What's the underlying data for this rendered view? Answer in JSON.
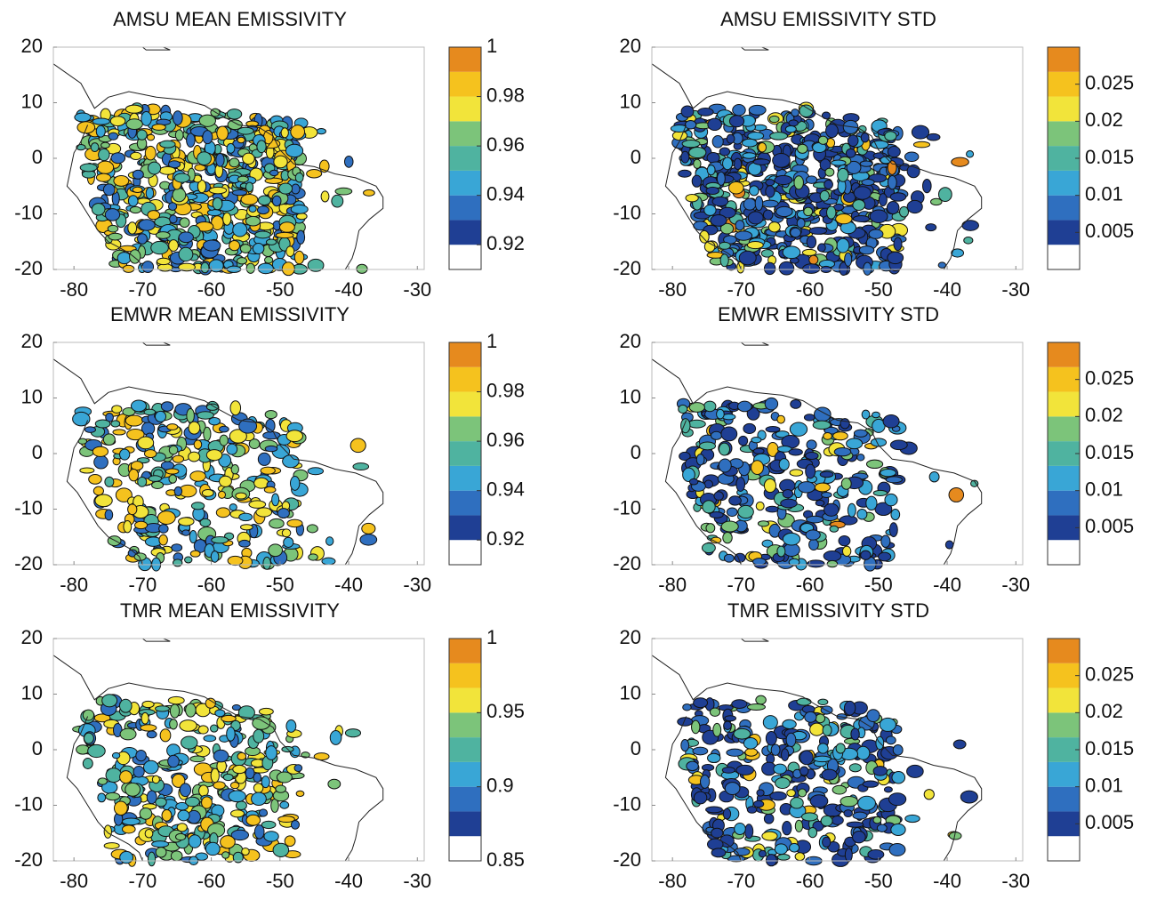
{
  "chart_data": [
    {
      "type": "contour-map",
      "title": "AMSU MEAN EMISSIVITY",
      "xlim": [
        -83,
        -29
      ],
      "ylim": [
        -20,
        20
      ],
      "xticks": [
        -80,
        -70,
        -60,
        -50,
        -40,
        -30
      ],
      "yticks": [
        -20,
        -10,
        0,
        10,
        20
      ],
      "colorbar": {
        "lim": [
          0.91,
          1
        ],
        "ticks": [
          0.92,
          0.94,
          0.96,
          0.98,
          1
        ],
        "colors": [
          "#ffffff",
          "#1f3f94",
          "#2f6fbf",
          "#39a6d6",
          "#4fb3a0",
          "#7cc47a",
          "#f2e43a",
          "#f5c21e",
          "#e68a1e"
        ]
      }
    },
    {
      "type": "contour-map",
      "title": "AMSU EMISSIVITY STD",
      "xlim": [
        -83,
        -29
      ],
      "ylim": [
        -20,
        20
      ],
      "xticks": [
        -80,
        -70,
        -60,
        -50,
        -40,
        -30
      ],
      "yticks": [
        -20,
        -10,
        0,
        10,
        20
      ],
      "colorbar": {
        "lim": [
          0,
          0.03
        ],
        "ticks": [
          0.005,
          0.01,
          0.015,
          0.02,
          0.025
        ],
        "colors": [
          "#ffffff",
          "#1f3f94",
          "#2f6fbf",
          "#39a6d6",
          "#4fb3a0",
          "#7cc47a",
          "#f2e43a",
          "#f5c21e",
          "#e68a1e"
        ]
      }
    },
    {
      "type": "contour-map",
      "title": "EMWR MEAN EMISSIVITY",
      "xlim": [
        -83,
        -29
      ],
      "ylim": [
        -20,
        20
      ],
      "xticks": [
        -80,
        -70,
        -60,
        -50,
        -40,
        -30
      ],
      "yticks": [
        -20,
        -10,
        0,
        10,
        20
      ],
      "colorbar": {
        "lim": [
          0.91,
          1
        ],
        "ticks": [
          0.92,
          0.94,
          0.96,
          0.98,
          1
        ],
        "colors": [
          "#ffffff",
          "#1f3f94",
          "#2f6fbf",
          "#39a6d6",
          "#4fb3a0",
          "#7cc47a",
          "#f2e43a",
          "#f5c21e",
          "#e68a1e"
        ]
      }
    },
    {
      "type": "contour-map",
      "title": "EMWR EMISSIVITY STD",
      "xlim": [
        -83,
        -29
      ],
      "ylim": [
        -20,
        20
      ],
      "xticks": [
        -80,
        -70,
        -60,
        -50,
        -40,
        -30
      ],
      "yticks": [
        -20,
        -10,
        0,
        10,
        20
      ],
      "colorbar": {
        "lim": [
          0,
          0.03
        ],
        "ticks": [
          0.005,
          0.01,
          0.015,
          0.02,
          0.025
        ],
        "colors": [
          "#ffffff",
          "#1f3f94",
          "#2f6fbf",
          "#39a6d6",
          "#4fb3a0",
          "#7cc47a",
          "#f2e43a",
          "#f5c21e",
          "#e68a1e"
        ]
      }
    },
    {
      "type": "contour-map",
      "title": "TMR MEAN EMISSIVITY",
      "xlim": [
        -83,
        -29
      ],
      "ylim": [
        -20,
        20
      ],
      "xticks": [
        -80,
        -70,
        -60,
        -50,
        -40,
        -30
      ],
      "yticks": [
        -20,
        -10,
        0,
        10,
        20
      ],
      "colorbar": {
        "lim": [
          0.85,
          1
        ],
        "ticks": [
          0.85,
          0.9,
          0.95,
          1
        ],
        "colors": [
          "#ffffff",
          "#1f3f94",
          "#2f6fbf",
          "#39a6d6",
          "#4fb3a0",
          "#7cc47a",
          "#f2e43a",
          "#f5c21e",
          "#e68a1e"
        ]
      }
    },
    {
      "type": "contour-map",
      "title": "TMR EMISSIVITY STD",
      "xlim": [
        -83,
        -29
      ],
      "ylim": [
        -20,
        20
      ],
      "xticks": [
        -80,
        -70,
        -60,
        -50,
        -40,
        -30
      ],
      "yticks": [
        -20,
        -10,
        0,
        10,
        20
      ],
      "colorbar": {
        "lim": [
          0,
          0.03
        ],
        "ticks": [
          0.005,
          0.01,
          0.015,
          0.02,
          0.025
        ],
        "colors": [
          "#ffffff",
          "#1f3f94",
          "#2f6fbf",
          "#39a6d6",
          "#4fb3a0",
          "#7cc47a",
          "#f2e43a",
          "#f5c21e",
          "#e68a1e"
        ]
      }
    }
  ]
}
